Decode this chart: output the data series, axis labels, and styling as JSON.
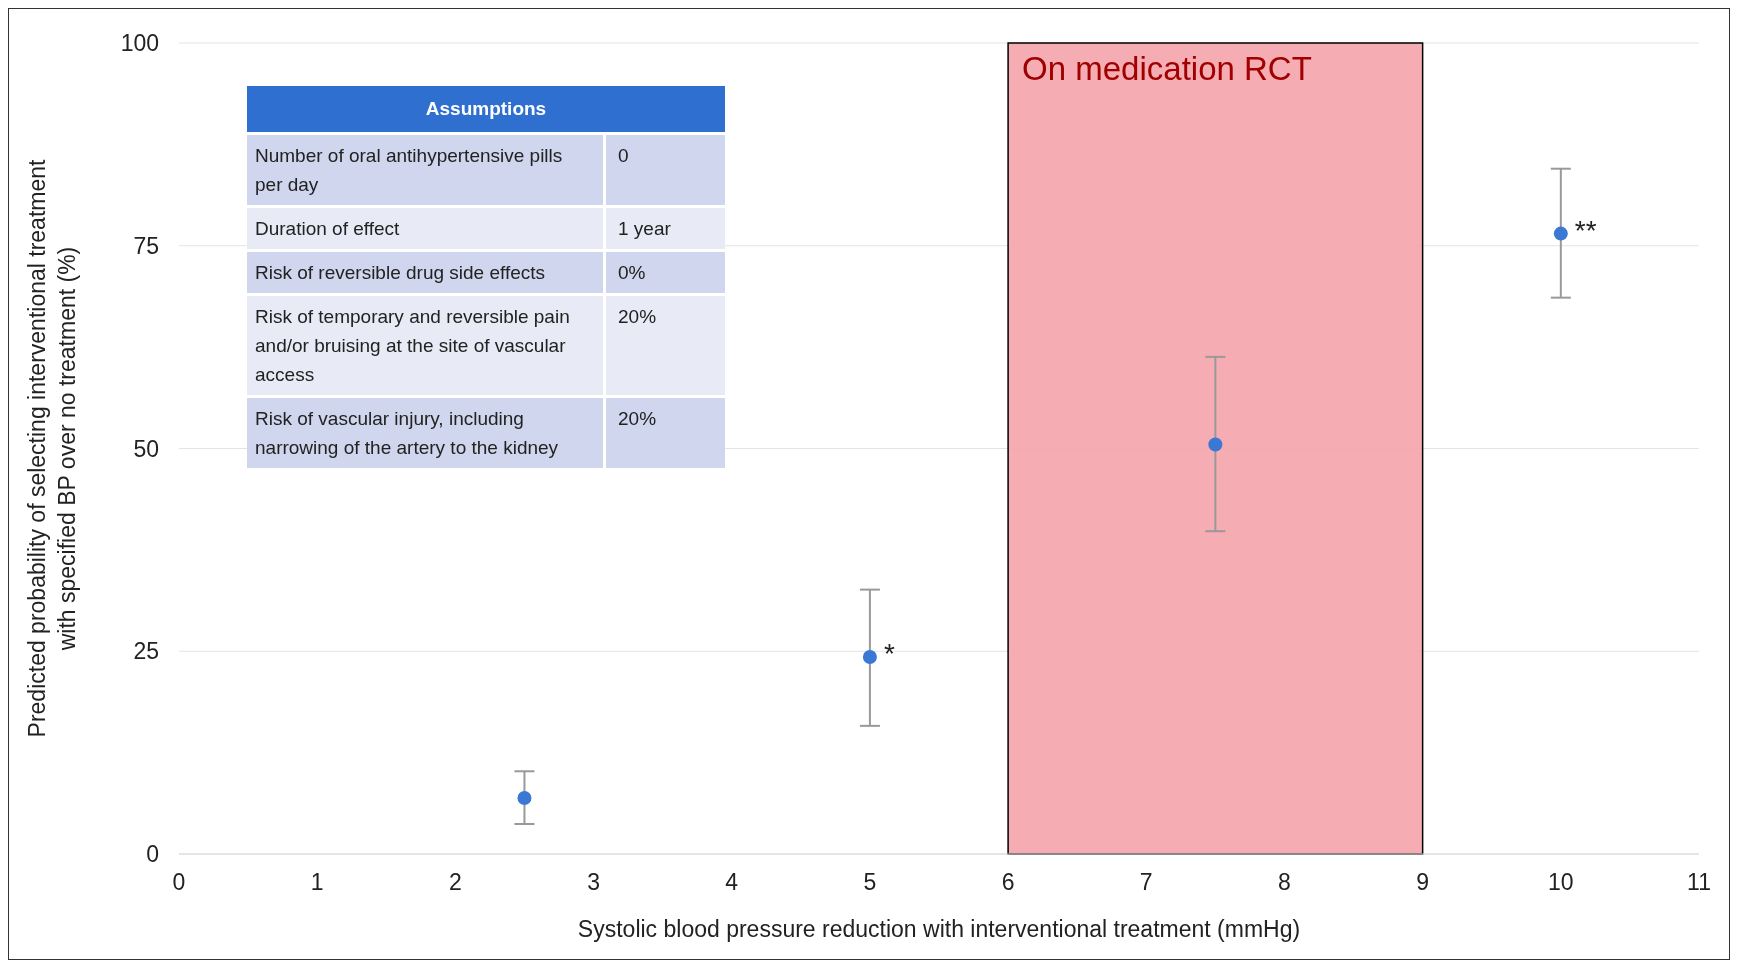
{
  "chart_data": {
    "type": "scatter",
    "xlabel": "Systolic blood pressure reduction with interventional treatment (mmHg)",
    "ylabel": "Predicted probability of selecting interventional treatment with specified BP over no treatment (%)",
    "x": [
      2.5,
      5,
      7.5,
      10
    ],
    "series": [
      {
        "color": "#3a78d4",
        "values": [
          6.9,
          24.3,
          50.5,
          76.5
        ],
        "errors": [
          [
            3.7,
            10.2
          ],
          [
            15.8,
            32.6
          ],
          [
            39.8,
            61.3
          ],
          [
            68.6,
            84.5
          ]
        ]
      }
    ],
    "xlim": [
      0,
      11
    ],
    "xticks": [
      0,
      1,
      2,
      3,
      4,
      5,
      6,
      7,
      8,
      9,
      10,
      11
    ],
    "ylim": [
      0,
      100
    ],
    "yticks": [
      0,
      25,
      50,
      75,
      100
    ],
    "grid": "y",
    "marker": "circle",
    "bands": [
      {
        "axis": "x",
        "from": 6,
        "to": 9,
        "label": "On medication RCT",
        "color": "#f4a3ab"
      }
    ],
    "annotations": [
      {
        "text": "*",
        "x": 5,
        "y": 24.3
      },
      {
        "text": "**",
        "x": 10,
        "y": 76.5
      },
      "Assumptions",
      "Number of oral antihypertensive pills per day",
      "0",
      "Duration of effect",
      "1 year",
      "Risk of reversible drug side effects",
      "0%",
      "Risk of temporary and reversible pain and/or bruising at the site of vascular access",
      "20%",
      "Risk of vascular injury, including narrowing of the artery to the kidney",
      "20%"
    ]
  }
}
